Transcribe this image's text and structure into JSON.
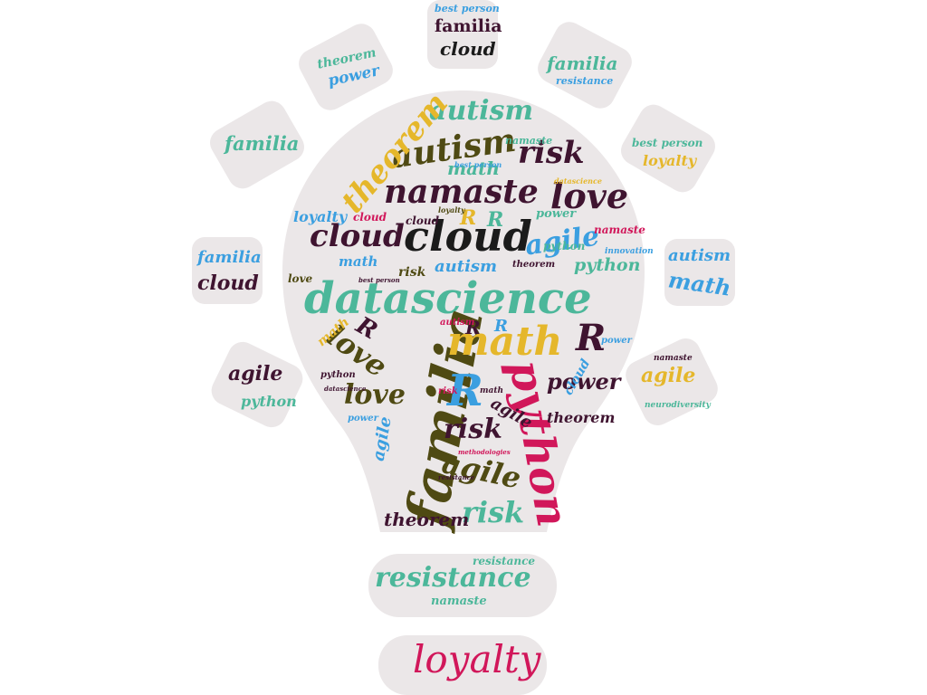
{
  "colors": {
    "background": "#ffffff",
    "shape_fill": "#ebe7e8",
    "teal": "#4cb79a",
    "olive": "#4f4a13",
    "maroon": "#3f1430",
    "yellow": "#e5b72b",
    "blue": "#3b9fe0",
    "pink": "#d1175a",
    "black": "#1b1b1b"
  },
  "ray_words": {
    "top_center": [
      "best person",
      "familia",
      "cloud"
    ],
    "top_left": [
      "theorem",
      "power"
    ],
    "top_right": [
      "familia",
      "resistance"
    ],
    "left_upper": [
      "familia"
    ],
    "right_upper": [
      "best person",
      "loyalty"
    ],
    "left_middle": [
      "familia",
      "cloud"
    ],
    "right_middle": [
      "autism",
      "math"
    ],
    "left_lower": [
      "agile",
      "python"
    ],
    "right_lower": [
      "namaste",
      "agile",
      "neurodiversity"
    ]
  },
  "base_words": {
    "band1": [
      "resistance",
      "resistance",
      "namaste"
    ],
    "band2": [
      "loyalty"
    ]
  },
  "bulb_words": [
    "datascience",
    "familia",
    "python",
    "math",
    "cloud",
    "cloud",
    "namaste",
    "autism",
    "autism",
    "theorem",
    "love",
    "love",
    "love",
    "risk",
    "risk",
    "risk",
    "agile",
    "agile",
    "agile",
    "R",
    "R",
    "R",
    "R",
    "R",
    "R",
    "R",
    "power",
    "autism",
    "python",
    "math",
    "math",
    "loyalty",
    "cloud",
    "theorem",
    "theorem",
    "namaste",
    "cloud",
    "agile",
    "python",
    "power",
    "math",
    "love",
    "risk",
    "cloud",
    "namaste",
    "best person",
    "datascience",
    "loyalty",
    "innovation",
    "theorem",
    "autism",
    "power",
    "python",
    "datascience",
    "power",
    "risk",
    "methodologies",
    "resistance",
    "best person",
    "math"
  ]
}
